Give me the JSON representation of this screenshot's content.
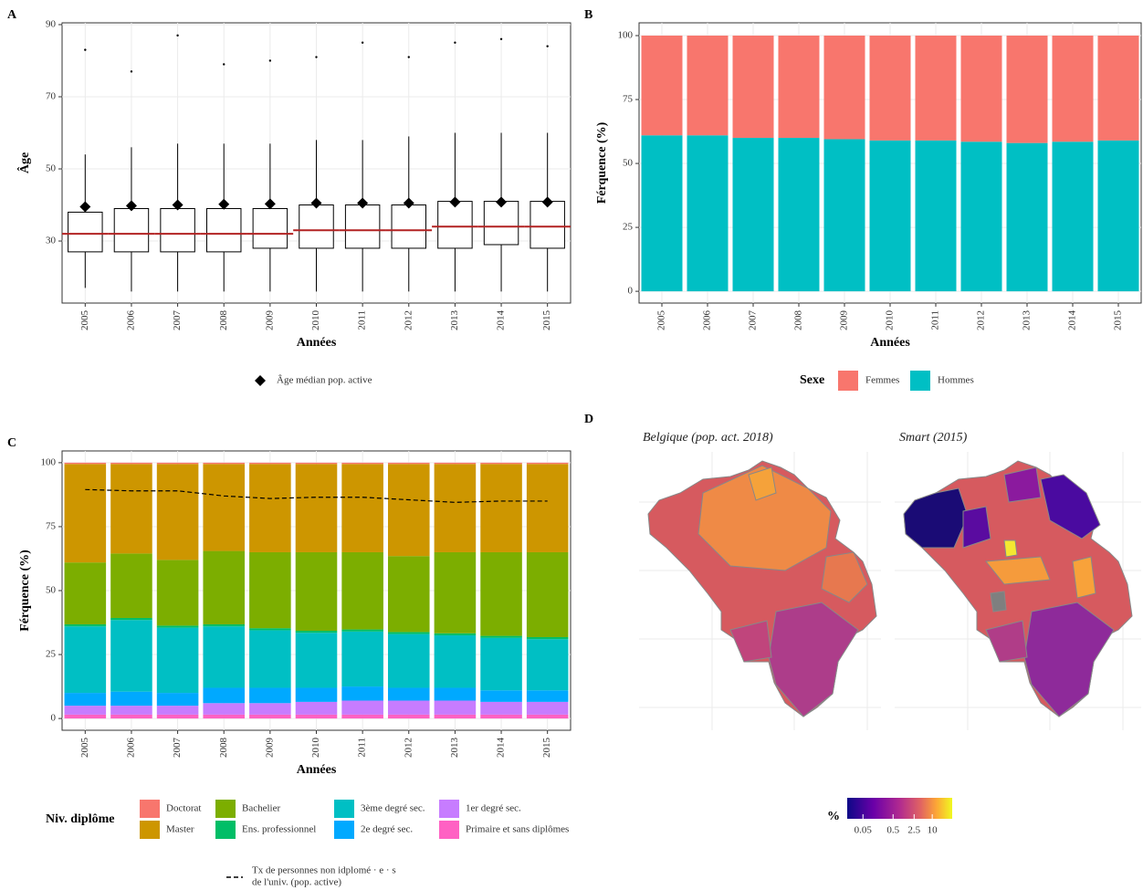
{
  "chart_data": [
    {
      "type": "box",
      "panel": "A",
      "xlabel": "Années",
      "ylabel": "Âge",
      "categories": [
        "2005",
        "2006",
        "2007",
        "2008",
        "2009",
        "2010",
        "2011",
        "2012",
        "2013",
        "2014",
        "2015"
      ],
      "ylim": [
        12.8,
        90.5
      ],
      "yticks": [
        30,
        50,
        70,
        90
      ],
      "grid": true,
      "color": "#000000",
      "median_color": "#b22222",
      "boxes": {
        "low": [
          17,
          16,
          16,
          16,
          16,
          16,
          16,
          16,
          16,
          16,
          16
        ],
        "q1": [
          27,
          27,
          27,
          27,
          28,
          28,
          28,
          28,
          28,
          29,
          28
        ],
        "median": [
          32,
          32,
          32,
          32,
          32,
          33,
          33,
          33,
          34,
          34,
          34
        ],
        "q3": [
          38,
          39,
          39,
          39,
          39,
          40,
          40,
          40,
          41,
          41,
          41
        ],
        "high": [
          54,
          56,
          57,
          57,
          57,
          58,
          58,
          59,
          60,
          60,
          60
        ],
        "max": [
          83,
          77,
          87,
          79,
          80,
          81,
          85,
          81,
          85,
          86,
          84
        ]
      },
      "markers": {
        "name": "Âge médian pop. active",
        "values": [
          39.5,
          39.8,
          40,
          40.2,
          40.3,
          40.5,
          40.5,
          40.5,
          40.8,
          40.8,
          40.8
        ]
      }
    },
    {
      "type": "stacked_bar",
      "panel": "B",
      "xlabel": "Années",
      "ylabel": "Férquence (%)",
      "legend_title": "Sexe",
      "categories": [
        "2005",
        "2006",
        "2007",
        "2008",
        "2009",
        "2010",
        "2011",
        "2012",
        "2013",
        "2014",
        "2015"
      ],
      "ylim": [
        -4.6,
        105
      ],
      "yticks": [
        0,
        25,
        50,
        75,
        100
      ],
      "grid": true,
      "series": [
        {
          "name": "Femmes",
          "color": "#f8766d",
          "values": [
            39,
            39,
            40,
            40,
            40.5,
            41,
            41,
            41.5,
            42,
            41.5,
            41
          ]
        },
        {
          "name": "Hommes",
          "color": "#00bfc4",
          "values": [
            61,
            61,
            60,
            60,
            59.5,
            59,
            59,
            58.5,
            58,
            58.5,
            59
          ]
        }
      ]
    },
    {
      "type": "stacked_bar",
      "panel": "C",
      "xlabel": "Années",
      "ylabel": "Férquence (%)",
      "legend_title": "Niv. diplôme",
      "categories": [
        "2005",
        "2006",
        "2007",
        "2008",
        "2009",
        "2010",
        "2011",
        "2012",
        "2013",
        "2014",
        "2015"
      ],
      "ylim": [
        -4.6,
        104.6
      ],
      "yticks": [
        0,
        25,
        50,
        75,
        100
      ],
      "grid": true,
      "series": [
        {
          "name": "Doctorat",
          "color": "#f8766d",
          "values": [
            0.5,
            0.5,
            0.5,
            0.5,
            0.5,
            0.5,
            0.5,
            0.5,
            0.5,
            0.5,
            0.5
          ]
        },
        {
          "name": "Master",
          "color": "#cd9600",
          "values": [
            38.5,
            35,
            37.5,
            34,
            34.5,
            34.5,
            34.5,
            36,
            34.5,
            34.5,
            34.5
          ]
        },
        {
          "name": "Bachelier",
          "color": "#7cae00",
          "values": [
            24.2,
            25.2,
            25.7,
            28.7,
            29.7,
            30.7,
            30.2,
            29.7,
            31.7,
            32.7,
            33.2
          ]
        },
        {
          "name": "Ens. professionnel",
          "color": "#00be67",
          "values": [
            0.8,
            0.8,
            0.8,
            0.8,
            0.8,
            0.8,
            0.8,
            0.8,
            0.8,
            0.8,
            0.8
          ]
        },
        {
          "name": "3ème degré sec.",
          "color": "#00bfc4",
          "values": [
            26,
            28,
            25.5,
            24,
            22.5,
            21.5,
            21.5,
            21,
            20.5,
            20.5,
            20
          ]
        },
        {
          "name": "2e degré sec.",
          "color": "#00a9ff",
          "values": [
            5,
            5.5,
            5,
            6,
            6,
            5.5,
            5.5,
            5,
            5,
            4.5,
            4.5
          ]
        },
        {
          "name": "1er degré sec.",
          "color": "#c77cff",
          "values": [
            3.5,
            3.5,
            3.5,
            4.5,
            4.5,
            5,
            5.5,
            5.5,
            5.5,
            5,
            5
          ]
        },
        {
          "name": "Primaire et sans diplômes",
          "color": "#ff61c3",
          "values": [
            1.5,
            1.5,
            1.5,
            1.5,
            1.5,
            1.5,
            1.5,
            1.5,
            1.5,
            1.5,
            1.5
          ]
        }
      ],
      "line": {
        "label_lines": [
          "Tx de personnes non idplomé · e · s",
          "de l'univ. (pop. active)"
        ],
        "color": "#000000",
        "values": [
          89.5,
          89,
          89,
          87,
          86,
          86.5,
          86.5,
          85.5,
          84.5,
          85,
          85
        ]
      }
    },
    {
      "type": "map",
      "panel": "D",
      "facets": [
        "Belgique (pop. act. 2018)",
        "Smart (2015)"
      ],
      "legend_title": "%",
      "log": true,
      "clim": [
        0.015,
        46
      ],
      "cticks": [
        0.05,
        0.5,
        2.5,
        10
      ]
    }
  ]
}
